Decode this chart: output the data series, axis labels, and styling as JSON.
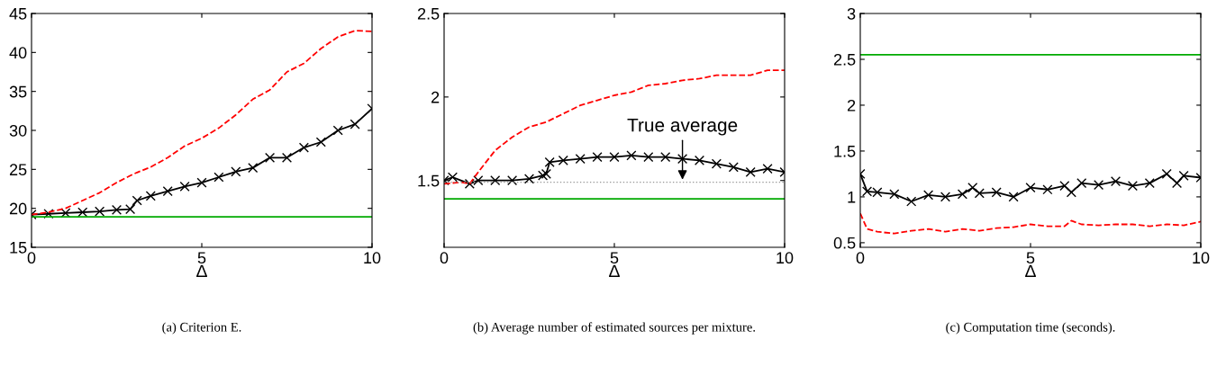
{
  "chart_data": [
    {
      "type": "line",
      "xlabel": "Δ",
      "xlim": [
        0,
        10
      ],
      "xticks": [
        0,
        5,
        10
      ],
      "ylim": [
        15,
        45
      ],
      "yticks": [
        15,
        20,
        25,
        30,
        35,
        40,
        45
      ],
      "grid": false,
      "legend": false,
      "annotations": [
        "(a) Criterion E."
      ],
      "series": [
        {
          "color": "#000000",
          "marker": "cross",
          "line_style": "solid",
          "x": [
            0,
            0.5,
            1,
            1.5,
            2,
            2.5,
            2.9,
            3.1,
            3.5,
            4,
            4.5,
            5,
            5.5,
            6,
            6.5,
            7,
            7.5,
            8,
            8.5,
            9,
            9.5,
            10
          ],
          "values": [
            19.2,
            19.3,
            19.4,
            19.5,
            19.6,
            19.8,
            19.9,
            21.0,
            21.6,
            22.2,
            22.8,
            23.3,
            24.0,
            24.7,
            25.2,
            26.5,
            26.5,
            27.8,
            28.5,
            30.0,
            30.8,
            32.8
          ]
        },
        {
          "color": "#ff0000",
          "marker": "none",
          "line_style": "dashed",
          "x": [
            0,
            0.5,
            1,
            1.5,
            2,
            2.5,
            2.9,
            3.1,
            3.5,
            4,
            4.5,
            5,
            5.5,
            6,
            6.5,
            7,
            7.5,
            8,
            8.5,
            9,
            9.5,
            10
          ],
          "values": [
            19.2,
            19.5,
            20.0,
            21.0,
            22.0,
            23.3,
            24.2,
            24.6,
            25.3,
            26.5,
            28.0,
            29.0,
            30.3,
            32.0,
            34.0,
            35.2,
            37.5,
            38.6,
            40.5,
            42.0,
            42.8,
            42.7
          ]
        },
        {
          "color": "#00aa00",
          "marker": "none",
          "line_style": "solid",
          "x": [
            0,
            10
          ],
          "values": [
            18.9,
            18.9
          ]
        }
      ]
    },
    {
      "type": "line",
      "xlabel": "Δ",
      "xlim": [
        0,
        10
      ],
      "xticks": [
        0,
        5,
        10
      ],
      "ylim": [
        1.1,
        2.5
      ],
      "yticks": [
        1.5,
        2,
        2.5
      ],
      "grid": false,
      "legend": false,
      "annotations": [
        {
          "text": "True average",
          "x": 7,
          "y": 1.49
        },
        "(b) Average number of estimated sources per mixture."
      ],
      "ref_lines": [
        {
          "axis": "y",
          "value": 1.49,
          "color": "#999999",
          "line_style": "dotted"
        }
      ],
      "series": [
        {
          "color": "#000000",
          "marker": "cross",
          "line_style": "solid",
          "x": [
            0,
            0.25,
            0.75,
            1,
            1.5,
            2,
            2.5,
            2.9,
            3.0,
            3.1,
            3.5,
            4,
            4.5,
            5,
            5.5,
            6,
            6.5,
            7,
            7.5,
            8,
            8.5,
            9,
            9.5,
            10
          ],
          "values": [
            1.5,
            1.52,
            1.48,
            1.5,
            1.5,
            1.5,
            1.51,
            1.53,
            1.54,
            1.61,
            1.62,
            1.63,
            1.64,
            1.64,
            1.65,
            1.64,
            1.64,
            1.63,
            1.62,
            1.6,
            1.58,
            1.55,
            1.57,
            1.55
          ]
        },
        {
          "color": "#ff0000",
          "marker": "none",
          "line_style": "dashed",
          "x": [
            0,
            0.5,
            0.75,
            1,
            1.5,
            2,
            2.5,
            3,
            3.5,
            4,
            4.5,
            5,
            5.5,
            6,
            6.5,
            7,
            7.5,
            8,
            8.5,
            9,
            9.5,
            10
          ],
          "values": [
            1.48,
            1.49,
            1.48,
            1.55,
            1.68,
            1.76,
            1.82,
            1.85,
            1.9,
            1.95,
            1.98,
            2.01,
            2.03,
            2.07,
            2.08,
            2.1,
            2.11,
            2.13,
            2.13,
            2.13,
            2.16,
            2.16
          ]
        },
        {
          "color": "#00aa00",
          "marker": "none",
          "line_style": "solid",
          "x": [
            0,
            10
          ],
          "values": [
            1.39,
            1.39
          ]
        }
      ]
    },
    {
      "type": "line",
      "xlabel": "Δ",
      "xlim": [
        0,
        10
      ],
      "xticks": [
        0,
        5,
        10
      ],
      "ylim": [
        0.45,
        3
      ],
      "yticks": [
        0.5,
        1,
        1.5,
        2,
        2.5,
        3
      ],
      "grid": false,
      "legend": false,
      "annotations": [
        "(c) Computation time (seconds)."
      ],
      "series": [
        {
          "color": "#000000",
          "marker": "cross",
          "line_style": "solid",
          "x": [
            0,
            0.2,
            0.5,
            1,
            1.5,
            2,
            2.5,
            3,
            3.3,
            3.5,
            4,
            4.5,
            5,
            5.5,
            6,
            6.2,
            6.5,
            7,
            7.5,
            8,
            8.5,
            9,
            9.3,
            9.5,
            10
          ],
          "values": [
            1.25,
            1.06,
            1.05,
            1.03,
            0.95,
            1.02,
            1.0,
            1.03,
            1.1,
            1.04,
            1.05,
            1.0,
            1.1,
            1.08,
            1.12,
            1.05,
            1.15,
            1.13,
            1.17,
            1.12,
            1.15,
            1.25,
            1.15,
            1.23,
            1.21
          ]
        },
        {
          "color": "#ff0000",
          "marker": "none",
          "line_style": "dashed",
          "x": [
            0,
            0.2,
            0.5,
            1,
            1.5,
            2,
            2.5,
            3,
            3.5,
            4,
            4.5,
            5,
            5.5,
            6,
            6.2,
            6.5,
            7,
            7.5,
            8,
            8.5,
            9,
            9.5,
            10
          ],
          "values": [
            0.82,
            0.65,
            0.62,
            0.6,
            0.63,
            0.65,
            0.62,
            0.65,
            0.63,
            0.66,
            0.67,
            0.7,
            0.68,
            0.68,
            0.74,
            0.7,
            0.69,
            0.7,
            0.7,
            0.68,
            0.7,
            0.69,
            0.73
          ]
        },
        {
          "color": "#00aa00",
          "marker": "none",
          "line_style": "solid",
          "x": [
            0,
            10
          ],
          "values": [
            2.55,
            2.55
          ]
        }
      ]
    }
  ]
}
